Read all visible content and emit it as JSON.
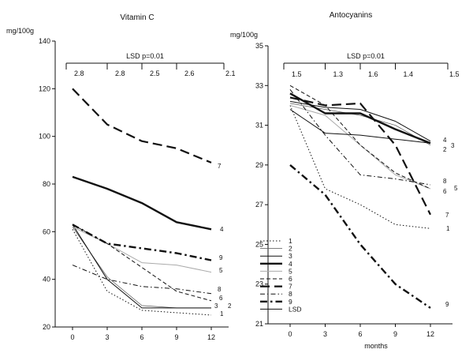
{
  "chart_data": [
    {
      "type": "line",
      "title": "Vitamin C",
      "ylabel": "mg/100g",
      "ylabel_side": "mg/100g",
      "xlabel": "",
      "x": [
        0,
        3,
        6,
        9,
        12
      ],
      "xticks": [
        "0",
        "3",
        "6",
        "9",
        "12"
      ],
      "ylim": [
        20,
        140
      ],
      "yticks": [
        20,
        40,
        60,
        80,
        100,
        120,
        140
      ],
      "lsd": {
        "title": "LSD p=0.01",
        "values": [
          "2.8",
          "2.8",
          "2.5",
          "2.6",
          "2.1"
        ],
        "bracket_x": [
          0,
          3,
          6,
          9,
          12
        ]
      },
      "series": [
        {
          "name": "1",
          "values": [
            61,
            35,
            27,
            26,
            25
          ],
          "style": "dotted",
          "end_label": "1"
        },
        {
          "name": "2",
          "values": [
            62,
            41,
            29,
            28,
            28
          ],
          "style": "thin",
          "end_label": "2"
        },
        {
          "name": "3",
          "values": [
            63,
            40,
            28,
            28,
            28
          ],
          "style": "solid",
          "end_label": "3"
        },
        {
          "name": "4",
          "values": [
            83,
            78,
            72,
            64,
            61
          ],
          "style": "thick",
          "end_label": "4"
        },
        {
          "name": "5",
          "values": [
            62,
            55,
            47,
            46,
            43
          ],
          "style": "light",
          "end_label": "5"
        },
        {
          "name": "6",
          "values": [
            63,
            55,
            45,
            35,
            31
          ],
          "style": "dashed",
          "end_label": "6"
        },
        {
          "name": "7",
          "values": [
            120,
            105,
            98,
            95,
            89
          ],
          "style": "longdash",
          "end_label": "7"
        },
        {
          "name": "8",
          "values": [
            46,
            40,
            37,
            36,
            34
          ],
          "style": "dashdot",
          "end_label": "8"
        },
        {
          "name": "9",
          "values": [
            63,
            55,
            53,
            51,
            48
          ],
          "style": "thickdashdot",
          "end_label": "9"
        }
      ],
      "legend_position": "none"
    },
    {
      "type": "line",
      "title": "Antocyanins",
      "ylabel": "mg/100g",
      "xlabel": "months",
      "x": [
        0,
        3,
        6,
        9,
        12
      ],
      "xticks": [
        "0",
        "3",
        "6",
        "9",
        "12"
      ],
      "ylim": [
        21,
        35
      ],
      "yticks": [
        21,
        23,
        25,
        27,
        29,
        31,
        33,
        35
      ],
      "lsd": {
        "title": "LSD p=0.01",
        "values": [
          "1.5",
          "1.3",
          "1.6",
          "1.4",
          "1.5"
        ],
        "bracket_x": [
          0,
          3,
          6,
          9,
          12
        ]
      },
      "series": [
        {
          "name": "1",
          "values": [
            32,
            27.8,
            27,
            26,
            25.8
          ],
          "style": "dotted",
          "end_label": "1"
        },
        {
          "name": "2",
          "values": [
            32.1,
            31.8,
            31.5,
            31,
            30
          ],
          "style": "thin",
          "end_label": "2"
        },
        {
          "name": "3",
          "values": [
            32.2,
            31.9,
            31.8,
            31.2,
            30.2
          ],
          "style": "solid",
          "end_label": "3"
        },
        {
          "name": "4",
          "values": [
            32.6,
            31.6,
            31.6,
            30.8,
            30.1
          ],
          "style": "thick",
          "end_label": "4"
        },
        {
          "name": "5",
          "values": [
            32,
            31.5,
            30,
            28.5,
            27.8
          ],
          "style": "light",
          "end_label": "5"
        },
        {
          "name": "6",
          "values": [
            33,
            32,
            30,
            28.6,
            27.8
          ],
          "style": "dashed",
          "end_label": "6"
        },
        {
          "name": "7",
          "values": [
            32.4,
            32,
            32.1,
            30,
            26.5
          ],
          "style": "longdash",
          "end_label": "7"
        },
        {
          "name": "8",
          "values": [
            32.8,
            30.5,
            28.5,
            28.3,
            28
          ],
          "style": "dashdot",
          "end_label": "8"
        },
        {
          "name": "9",
          "values": [
            29,
            27.5,
            25,
            23,
            21.8
          ],
          "style": "thickdashdot",
          "end_label": "9"
        },
        {
          "name": "LSD",
          "values": [
            31.8,
            30.6,
            30.5,
            30.3,
            30.1
          ],
          "style": "solid",
          "end_label": ""
        }
      ],
      "legend_position": "bottom-left",
      "legend": [
        "1",
        "2",
        "3",
        "4",
        "5",
        "6",
        "7",
        "8",
        "9",
        "LSD"
      ]
    }
  ]
}
